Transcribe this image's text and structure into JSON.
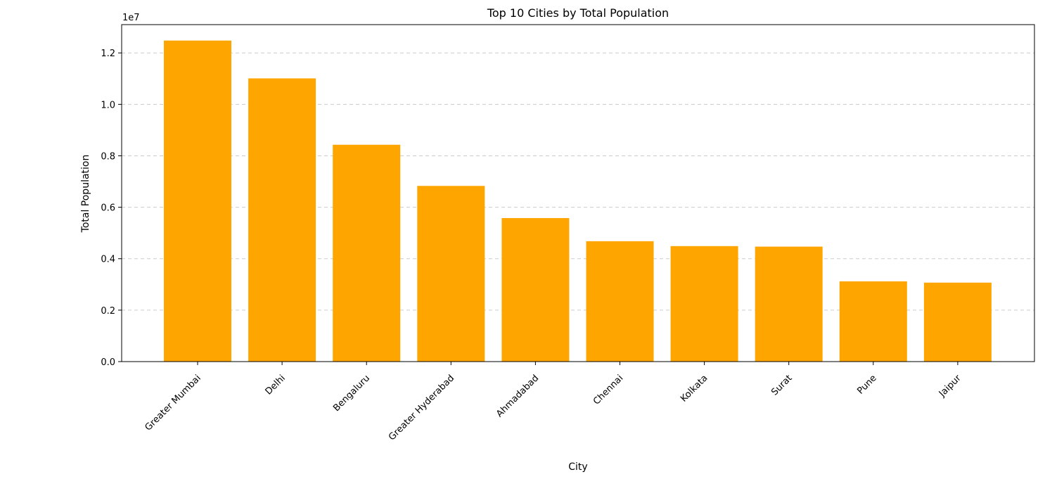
{
  "chart_data": {
    "type": "bar",
    "title": "Top 10 Cities by Total Population",
    "xlabel": "City",
    "ylabel": "Total Population",
    "y_offset_label": "1e7",
    "categories": [
      "Greater Mumbai",
      "Delhi",
      "Bengaluru",
      "Greater Hyderabad",
      "Ahmadabad",
      "Chennai",
      "Kolkata",
      "Surat",
      "Pune",
      "Jaipur"
    ],
    "values": [
      12480000,
      11010000,
      8430000,
      6830000,
      5580000,
      4680000,
      4490000,
      4470000,
      3120000,
      3070000
    ],
    "yticks": [
      0,
      2000000,
      4000000,
      6000000,
      8000000,
      10000000,
      12000000
    ],
    "ytick_labels": [
      "0.0",
      "0.2",
      "0.4",
      "0.6",
      "0.8",
      "1.0",
      "1.2"
    ],
    "ylim": [
      0,
      13100000
    ],
    "bar_color": "#ffa500",
    "grid": "horizontal dashed",
    "legend": "none"
  }
}
